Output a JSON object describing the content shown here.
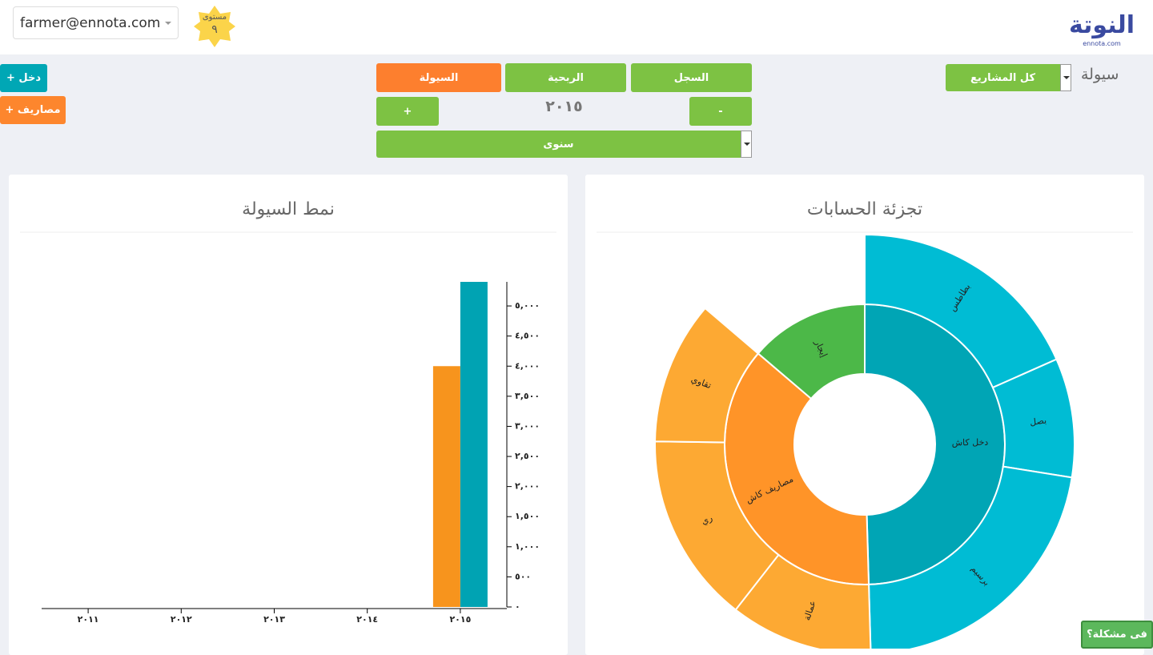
{
  "header": {
    "logo": "النوتة",
    "logo_domain": "ennota.com",
    "user_email": "farmer@ennota.com",
    "level_label": "مستوى",
    "level": "٩"
  },
  "toolbar": {
    "page_title": "سيولة",
    "project_filter": "كل المشاريع",
    "tabs": [
      "السجل",
      "الربحية",
      "السيولة"
    ],
    "active_tab": 2,
    "year": "٢٠١٥",
    "prev": "-",
    "next": "+",
    "period": "سنوى",
    "add_income": "+ دخل",
    "add_expense": "+ مصاريف"
  },
  "help": "فى مشكلة؟",
  "chart_data": [
    {
      "type": "sunburst",
      "title": "تجزئة الحسابات",
      "series": [
        {
          "name": "دخل كاش",
          "color": "#00a5b5",
          "value": 5400,
          "children": {
            "color": "#00bcd4",
            "categories": [
              "بطاطس",
              "بصل",
              "برسيم"
            ],
            "values": [
              2000,
              1000,
              2400
            ]
          }
        },
        {
          "name": "مصاريف كاش",
          "color": "#ff9428",
          "value": 4000,
          "children": {
            "color": "#fda933",
            "categories": [
              "عمالة",
              "ري",
              "تقاوي"
            ],
            "values": [
              1200,
              1600,
              1200
            ]
          }
        },
        {
          "name": "إيجار",
          "color": "#4cb848",
          "value": 1500
        }
      ]
    },
    {
      "type": "bar",
      "title": "نمط السيولة",
      "categories": [
        "٢٠١١",
        "٢٠١٢",
        "٢٠١٣",
        "٢٠١٤",
        "٢٠١٥"
      ],
      "series": [
        {
          "color": "#f7941d",
          "values": [
            0,
            0,
            0,
            0,
            4000
          ]
        },
        {
          "color": "#00a3b3",
          "values": [
            0,
            0,
            0,
            0,
            5400
          ]
        }
      ],
      "ylim": [
        0,
        5400
      ],
      "yticks": [
        {
          "value": 0,
          "label": "٠"
        },
        {
          "value": 500,
          "label": "٥٠٠"
        },
        {
          "value": 1000,
          "label": "١,٠٠٠"
        },
        {
          "value": 1500,
          "label": "١,٥٠٠"
        },
        {
          "value": 2000,
          "label": "٢,٠٠٠"
        },
        {
          "value": 2500,
          "label": "٢,٥٠٠"
        },
        {
          "value": 3000,
          "label": "٣,٠٠٠"
        },
        {
          "value": 3500,
          "label": "٣,٥٠٠"
        },
        {
          "value": 4000,
          "label": "٤,٠٠٠"
        },
        {
          "value": 4500,
          "label": "٤,٥٠٠"
        },
        {
          "value": 5000,
          "label": "٥,٠٠٠"
        }
      ],
      "axis_side": "right"
    }
  ]
}
